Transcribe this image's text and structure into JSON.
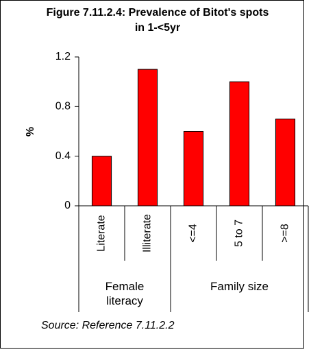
{
  "chart_data": {
    "type": "bar",
    "title": "Figure 7.11.2.4: Prevalence of Bitot's spots in 1-<5yr",
    "y_label": "%",
    "groups": [
      {
        "label": "Female literacy",
        "categories": [
          "Literate",
          "Illiterate"
        ]
      },
      {
        "label": "Family size",
        "categories": [
          "<=4",
          "5 to 7",
          ">=8"
        ]
      }
    ],
    "values": [
      0.4,
      1.1,
      0.6,
      1.0,
      0.7
    ],
    "color": "#ff0000",
    "ylim": [
      0,
      1.2
    ],
    "yticks": [
      0,
      0.4,
      0.8,
      1.2
    ],
    "source": "Source: Reference 7.11.2.2"
  }
}
